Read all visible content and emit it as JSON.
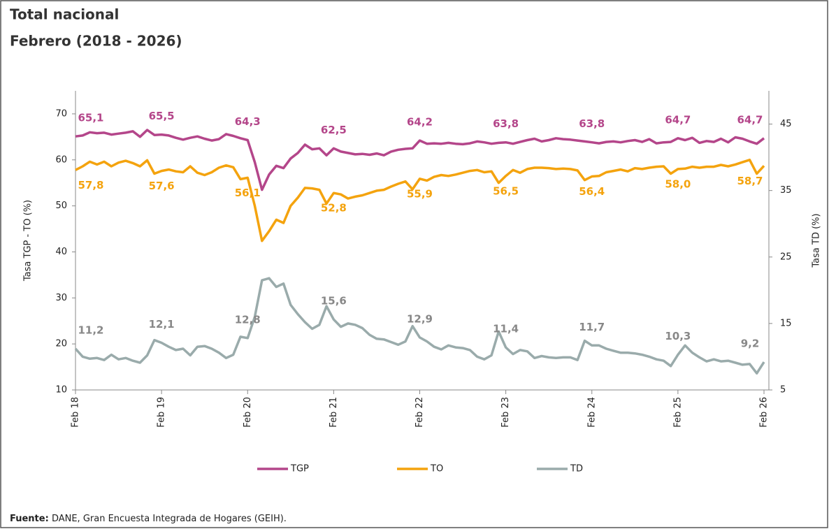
{
  "chart_data": {
    "type": "line",
    "title": "Total nacional",
    "subtitle": "Febrero (2018 - 2026)",
    "ylabel": "Tasa TGP - TO (%)",
    "y2label": "Tasa TD (%)",
    "source_label": "Fuente:",
    "source": "DANE, Gran Encuesta Integrada de Hogares (GEIH).",
    "categories": [
      "Feb 18",
      null,
      null,
      null,
      null,
      null,
      null,
      null,
      null,
      null,
      null,
      null,
      "Feb 19",
      null,
      null,
      null,
      null,
      null,
      null,
      null,
      null,
      null,
      null,
      null,
      "Feb 20",
      null,
      null,
      null,
      null,
      null,
      null,
      null,
      null,
      null,
      null,
      null,
      "Feb 21",
      null,
      null,
      null,
      null,
      null,
      null,
      null,
      null,
      null,
      null,
      null,
      "Feb 22",
      null,
      null,
      null,
      null,
      null,
      null,
      null,
      null,
      null,
      null,
      null,
      "Feb 23",
      null,
      null,
      null,
      null,
      null,
      null,
      null,
      null,
      null,
      null,
      null,
      "Feb 24",
      null,
      null,
      null,
      null,
      null,
      null,
      null,
      null,
      null,
      null,
      null,
      "Feb 25",
      null,
      null,
      null,
      null,
      null,
      null,
      null,
      null,
      null,
      null,
      null,
      "Feb 26"
    ],
    "ylim": [
      10,
      75
    ],
    "yticks": [
      10,
      20,
      30,
      40,
      50,
      60,
      70
    ],
    "y2lim": [
      5,
      50
    ],
    "y2ticks": [
      5,
      15,
      25,
      35,
      45
    ],
    "legend": "bottom",
    "series": [
      {
        "name": "TGP",
        "color": "#b4468a",
        "values": [
          65.1,
          65.3,
          66.0,
          65.8,
          65.9,
          65.5,
          65.7,
          65.9,
          66.2,
          65.0,
          66.5,
          65.4,
          65.5,
          65.3,
          64.8,
          64.4,
          64.8,
          65.1,
          64.6,
          64.2,
          64.5,
          65.6,
          65.2,
          64.7,
          64.3,
          59.5,
          53.5,
          56.8,
          58.7,
          58.2,
          60.3,
          61.5,
          63.3,
          62.3,
          62.5,
          61.0,
          62.5,
          61.8,
          61.5,
          61.2,
          61.3,
          61.1,
          61.4,
          61.0,
          61.8,
          62.2,
          62.4,
          62.5,
          64.2,
          63.5,
          63.6,
          63.5,
          63.7,
          63.5,
          63.4,
          63.6,
          64.0,
          63.8,
          63.5,
          63.7,
          63.8,
          63.5,
          63.9,
          64.3,
          64.6,
          64.0,
          64.3,
          64.7,
          64.5,
          64.4,
          64.2,
          64.0,
          63.8,
          63.6,
          63.9,
          64.0,
          63.8,
          64.1,
          64.3,
          63.9,
          64.5,
          63.6,
          63.8,
          63.9,
          64.7,
          64.3,
          64.8,
          63.7,
          64.1,
          63.9,
          64.6,
          63.8,
          64.9,
          64.6,
          64.0,
          63.5,
          64.7
        ],
        "value_labels": [
          "65,1",
          null,
          null,
          null,
          null,
          null,
          null,
          null,
          null,
          null,
          null,
          null,
          "65,5",
          null,
          null,
          null,
          null,
          null,
          null,
          null,
          null,
          null,
          null,
          null,
          "64,3",
          null,
          null,
          null,
          null,
          null,
          null,
          null,
          null,
          null,
          null,
          null,
          "62,5",
          null,
          null,
          null,
          null,
          null,
          null,
          null,
          null,
          null,
          null,
          null,
          "64,2",
          null,
          null,
          null,
          null,
          null,
          null,
          null,
          null,
          null,
          null,
          null,
          "63,8",
          null,
          null,
          null,
          null,
          null,
          null,
          null,
          null,
          null,
          null,
          null,
          "63,8",
          null,
          null,
          null,
          null,
          null,
          null,
          null,
          null,
          null,
          null,
          null,
          "64,7",
          null,
          null,
          null,
          null,
          null,
          null,
          null,
          null,
          null,
          null,
          null,
          "64,7"
        ]
      },
      {
        "name": "TO",
        "color": "#f4a30e",
        "values": [
          57.8,
          58.6,
          59.6,
          59.0,
          59.6,
          58.6,
          59.4,
          59.8,
          59.3,
          58.6,
          59.9,
          57.0,
          57.6,
          57.9,
          57.5,
          57.3,
          58.6,
          57.2,
          56.7,
          57.3,
          58.3,
          58.8,
          58.4,
          55.8,
          56.1,
          50.0,
          42.4,
          44.5,
          47.0,
          46.3,
          50.0,
          51.8,
          53.9,
          53.8,
          53.5,
          50.5,
          52.8,
          52.5,
          51.6,
          52.0,
          52.3,
          52.8,
          53.3,
          53.5,
          54.2,
          54.8,
          55.3,
          53.6,
          55.9,
          55.5,
          56.3,
          56.7,
          56.5,
          56.8,
          57.2,
          57.6,
          57.8,
          57.3,
          57.5,
          55.0,
          56.5,
          57.8,
          57.2,
          58.0,
          58.3,
          58.3,
          58.2,
          58.0,
          58.1,
          58.0,
          57.7,
          55.6,
          56.4,
          56.5,
          57.3,
          57.6,
          57.9,
          57.5,
          58.2,
          58.0,
          58.3,
          58.5,
          58.6,
          57.0,
          58.0,
          58.1,
          58.5,
          58.3,
          58.5,
          58.5,
          58.9,
          58.6,
          59.0,
          59.5,
          60.0,
          57.0,
          58.7
        ],
        "value_labels": [
          "57,8",
          null,
          null,
          null,
          null,
          null,
          null,
          null,
          null,
          null,
          null,
          null,
          "57,6",
          null,
          null,
          null,
          null,
          null,
          null,
          null,
          null,
          null,
          null,
          null,
          "56,1",
          null,
          null,
          null,
          null,
          null,
          null,
          null,
          null,
          null,
          null,
          null,
          "52,8",
          null,
          null,
          null,
          null,
          null,
          null,
          null,
          null,
          null,
          null,
          null,
          "55,9",
          null,
          null,
          null,
          null,
          null,
          null,
          null,
          null,
          null,
          null,
          null,
          "56,5",
          null,
          null,
          null,
          null,
          null,
          null,
          null,
          null,
          null,
          null,
          null,
          "56,4",
          null,
          null,
          null,
          null,
          null,
          null,
          null,
          null,
          null,
          null,
          null,
          "58,0",
          null,
          null,
          null,
          null,
          null,
          null,
          null,
          null,
          null,
          null,
          null,
          "58,7"
        ]
      },
      {
        "name": "TD",
        "color": "#9aabab",
        "axis": "y2",
        "values": [
          11.2,
          10.0,
          9.7,
          9.8,
          9.5,
          10.3,
          9.6,
          9.8,
          9.4,
          9.1,
          10.2,
          12.5,
          12.1,
          11.5,
          11.0,
          11.2,
          10.2,
          11.5,
          11.6,
          11.2,
          10.6,
          9.8,
          10.3,
          13.0,
          12.8,
          16.0,
          21.5,
          21.8,
          20.5,
          21.0,
          17.8,
          16.4,
          15.2,
          14.2,
          14.8,
          17.6,
          15.6,
          14.5,
          15.0,
          14.8,
          14.3,
          13.3,
          12.7,
          12.6,
          12.2,
          11.8,
          12.3,
          14.6,
          12.9,
          12.3,
          11.5,
          11.1,
          11.7,
          11.4,
          11.3,
          11.0,
          10.0,
          9.6,
          10.2,
          13.8,
          11.4,
          10.4,
          11.0,
          10.8,
          9.8,
          10.1,
          9.9,
          9.8,
          9.9,
          9.9,
          9.5,
          12.4,
          11.7,
          11.7,
          11.2,
          10.9,
          10.6,
          10.6,
          10.5,
          10.3,
          10.0,
          9.6,
          9.4,
          8.6,
          10.3,
          11.7,
          10.6,
          9.9,
          9.3,
          9.6,
          9.3,
          9.4,
          9.1,
          8.8,
          8.9,
          7.5,
          9.2
        ],
        "value_labels": [
          "11,2",
          null,
          null,
          null,
          null,
          null,
          null,
          null,
          null,
          null,
          null,
          null,
          "12,1",
          null,
          null,
          null,
          null,
          null,
          null,
          null,
          null,
          null,
          null,
          null,
          "12,8",
          null,
          null,
          null,
          null,
          null,
          null,
          null,
          null,
          null,
          null,
          null,
          "15,6",
          null,
          null,
          null,
          null,
          null,
          null,
          null,
          null,
          null,
          null,
          null,
          "12,9",
          null,
          null,
          null,
          null,
          null,
          null,
          null,
          null,
          null,
          null,
          null,
          "11,4",
          null,
          null,
          null,
          null,
          null,
          null,
          null,
          null,
          null,
          null,
          null,
          "11,7",
          null,
          null,
          null,
          null,
          null,
          null,
          null,
          null,
          null,
          null,
          null,
          "10,3",
          null,
          null,
          null,
          null,
          null,
          null,
          null,
          null,
          null,
          null,
          null,
          "9,2"
        ]
      }
    ]
  }
}
